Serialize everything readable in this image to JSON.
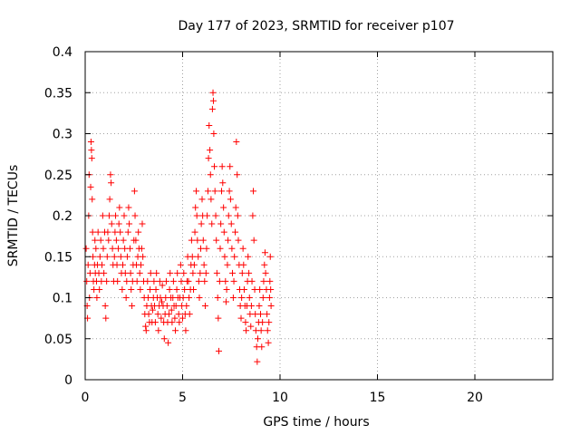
{
  "chart_data": {
    "type": "scatter",
    "title": "Day 177 of 2023, SRMTID for receiver p107",
    "xlabel": "GPS time / hours",
    "ylabel": "SRMTID / TECUs",
    "xlim": [
      0,
      24
    ],
    "ylim": [
      0,
      0.4
    ],
    "x_ticks": [
      0,
      5,
      10,
      15,
      20
    ],
    "y_ticks": [
      0,
      0.05,
      0.1,
      0.15,
      0.2,
      0.25,
      0.3,
      0.35,
      0.4
    ],
    "x_tick_labels": [
      "0",
      "5",
      "10",
      "15",
      "20"
    ],
    "y_tick_labels": [
      "0",
      "0.05",
      "0.1",
      "0.15",
      "0.2",
      "0.25",
      "0.3",
      "0.35",
      "0.4"
    ],
    "grid": true,
    "marker": "+",
    "color": "#ff0000",
    "points": [
      [
        0.05,
        0.16
      ],
      [
        0.08,
        0.12
      ],
      [
        0.1,
        0.09
      ],
      [
        0.12,
        0.075
      ],
      [
        0.15,
        0.14
      ],
      [
        0.18,
        0.2
      ],
      [
        0.2,
        0.25
      ],
      [
        0.22,
        0.1
      ],
      [
        0.25,
        0.13
      ],
      [
        0.28,
        0.235
      ],
      [
        0.3,
        0.29
      ],
      [
        0.32,
        0.28
      ],
      [
        0.34,
        0.27
      ],
      [
        0.36,
        0.22
      ],
      [
        0.38,
        0.18
      ],
      [
        0.4,
        0.15
      ],
      [
        0.42,
        0.12
      ],
      [
        0.45,
        0.11
      ],
      [
        0.48,
        0.14
      ],
      [
        0.5,
        0.17
      ],
      [
        0.52,
        0.13
      ],
      [
        0.55,
        0.16
      ],
      [
        0.58,
        0.12
      ],
      [
        0.6,
        0.1
      ],
      [
        0.63,
        0.14
      ],
      [
        0.66,
        0.18
      ],
      [
        0.7,
        0.13
      ],
      [
        0.73,
        0.11
      ],
      [
        0.76,
        0.15
      ],
      [
        0.8,
        0.17
      ],
      [
        0.83,
        0.12
      ],
      [
        0.86,
        0.14
      ],
      [
        0.9,
        0.2
      ],
      [
        0.93,
        0.16
      ],
      [
        0.96,
        0.13
      ],
      [
        1.0,
        0.18
      ],
      [
        1.03,
        0.09
      ],
      [
        1.06,
        0.075
      ],
      [
        1.1,
        0.12
      ],
      [
        1.13,
        0.15
      ],
      [
        1.16,
        0.18
      ],
      [
        1.2,
        0.17
      ],
      [
        1.23,
        0.2
      ],
      [
        1.26,
        0.22
      ],
      [
        1.3,
        0.25
      ],
      [
        1.33,
        0.24
      ],
      [
        1.36,
        0.19
      ],
      [
        1.4,
        0.16
      ],
      [
        1.43,
        0.14
      ],
      [
        1.46,
        0.12
      ],
      [
        1.5,
        0.15
      ],
      [
        1.53,
        0.18
      ],
      [
        1.56,
        0.2
      ],
      [
        1.6,
        0.17
      ],
      [
        1.63,
        0.14
      ],
      [
        1.66,
        0.12
      ],
      [
        1.7,
        0.16
      ],
      [
        1.73,
        0.19
      ],
      [
        1.76,
        0.21
      ],
      [
        1.8,
        0.18
      ],
      [
        1.83,
        0.15
      ],
      [
        1.86,
        0.13
      ],
      [
        1.9,
        0.11
      ],
      [
        1.93,
        0.14
      ],
      [
        1.96,
        0.17
      ],
      [
        2.0,
        0.2
      ],
      [
        2.03,
        0.16
      ],
      [
        2.06,
        0.13
      ],
      [
        2.1,
        0.1
      ],
      [
        2.13,
        0.12
      ],
      [
        2.16,
        0.15
      ],
      [
        2.2,
        0.18
      ],
      [
        2.23,
        0.21
      ],
      [
        2.26,
        0.19
      ],
      [
        2.3,
        0.16
      ],
      [
        2.33,
        0.13
      ],
      [
        2.36,
        0.11
      ],
      [
        2.4,
        0.09
      ],
      [
        2.43,
        0.12
      ],
      [
        2.46,
        0.14
      ],
      [
        2.5,
        0.17
      ],
      [
        2.53,
        0.23
      ],
      [
        2.56,
        0.2
      ],
      [
        2.6,
        0.17
      ],
      [
        2.63,
        0.14
      ],
      [
        2.66,
        0.12
      ],
      [
        2.7,
        0.15
      ],
      [
        2.73,
        0.18
      ],
      [
        2.76,
        0.16
      ],
      [
        2.8,
        0.13
      ],
      [
        2.83,
        0.11
      ],
      [
        2.86,
        0.14
      ],
      [
        2.9,
        0.16
      ],
      [
        2.93,
        0.19
      ],
      [
        2.96,
        0.15
      ],
      [
        3.0,
        0.12
      ],
      [
        3.03,
        0.1
      ],
      [
        3.06,
        0.08
      ],
      [
        3.1,
        0.065
      ],
      [
        3.13,
        0.06
      ],
      [
        3.16,
        0.09
      ],
      [
        3.2,
        0.12
      ],
      [
        3.23,
        0.1
      ],
      [
        3.26,
        0.08
      ],
      [
        3.3,
        0.07
      ],
      [
        3.33,
        0.11
      ],
      [
        3.36,
        0.13
      ],
      [
        3.4,
        0.09
      ],
      [
        3.43,
        0.07
      ],
      [
        3.46,
        0.085
      ],
      [
        3.5,
        0.1
      ],
      [
        3.53,
        0.12
      ],
      [
        3.56,
        0.09
      ],
      [
        3.6,
        0.07
      ],
      [
        3.63,
        0.11
      ],
      [
        3.66,
        0.13
      ],
      [
        3.7,
        0.1
      ],
      [
        3.73,
        0.08
      ],
      [
        3.76,
        0.06
      ],
      [
        3.8,
        0.09
      ],
      [
        3.83,
        0.12
      ],
      [
        3.86,
        0.1
      ],
      [
        3.9,
        0.075
      ],
      [
        3.93,
        0.095
      ],
      [
        3.96,
        0.115
      ],
      [
        4.0,
        0.09
      ],
      [
        4.03,
        0.07
      ],
      [
        4.06,
        0.05
      ],
      [
        4.1,
        0.08
      ],
      [
        4.13,
        0.1
      ],
      [
        4.16,
        0.12
      ],
      [
        4.2,
        0.09
      ],
      [
        4.23,
        0.07
      ],
      [
        4.26,
        0.045
      ],
      [
        4.3,
        0.08
      ],
      [
        4.33,
        0.11
      ],
      [
        4.36,
        0.13
      ],
      [
        4.4,
        0.1
      ],
      [
        4.43,
        0.085
      ],
      [
        4.46,
        0.07
      ],
      [
        4.5,
        0.1
      ],
      [
        4.53,
        0.12
      ],
      [
        4.56,
        0.09
      ],
      [
        4.6,
        0.075
      ],
      [
        4.63,
        0.06
      ],
      [
        4.66,
        0.09
      ],
      [
        4.7,
        0.11
      ],
      [
        4.73,
        0.13
      ],
      [
        4.76,
        0.1
      ],
      [
        4.8,
        0.08
      ],
      [
        4.83,
        0.07
      ],
      [
        4.86,
        0.1
      ],
      [
        4.9,
        0.14
      ],
      [
        4.93,
        0.12
      ],
      [
        4.96,
        0.09
      ],
      [
        5.0,
        0.075
      ],
      [
        5.03,
        0.1
      ],
      [
        5.06,
        0.13
      ],
      [
        5.1,
        0.11
      ],
      [
        5.13,
        0.08
      ],
      [
        5.16,
        0.06
      ],
      [
        5.2,
        0.09
      ],
      [
        5.23,
        0.12
      ],
      [
        5.26,
        0.15
      ],
      [
        5.3,
        0.12
      ],
      [
        5.33,
        0.1
      ],
      [
        5.36,
        0.08
      ],
      [
        5.4,
        0.11
      ],
      [
        5.43,
        0.14
      ],
      [
        5.46,
        0.17
      ],
      [
        5.5,
        0.15
      ],
      [
        5.53,
        0.13
      ],
      [
        5.56,
        0.11
      ],
      [
        5.6,
        0.14
      ],
      [
        5.63,
        0.18
      ],
      [
        5.66,
        0.21
      ],
      [
        5.7,
        0.23
      ],
      [
        5.73,
        0.2
      ],
      [
        5.76,
        0.17
      ],
      [
        5.8,
        0.15
      ],
      [
        5.83,
        0.12
      ],
      [
        5.86,
        0.1
      ],
      [
        5.9,
        0.13
      ],
      [
        5.93,
        0.16
      ],
      [
        5.96,
        0.19
      ],
      [
        6.0,
        0.22
      ],
      [
        6.03,
        0.2
      ],
      [
        6.06,
        0.17
      ],
      [
        6.1,
        0.14
      ],
      [
        6.13,
        0.12
      ],
      [
        6.16,
        0.09
      ],
      [
        6.2,
        0.13
      ],
      [
        6.23,
        0.16
      ],
      [
        6.26,
        0.2
      ],
      [
        6.3,
        0.23
      ],
      [
        6.33,
        0.27
      ],
      [
        6.36,
        0.31
      ],
      [
        6.4,
        0.28
      ],
      [
        6.43,
        0.25
      ],
      [
        6.46,
        0.22
      ],
      [
        6.5,
        0.19
      ],
      [
        6.53,
        0.33
      ],
      [
        6.56,
        0.35
      ],
      [
        6.58,
        0.34
      ],
      [
        6.6,
        0.3
      ],
      [
        6.63,
        0.26
      ],
      [
        6.66,
        0.23
      ],
      [
        6.7,
        0.2
      ],
      [
        6.73,
        0.17
      ],
      [
        6.76,
        0.13
      ],
      [
        6.8,
        0.1
      ],
      [
        6.83,
        0.075
      ],
      [
        6.86,
        0.035
      ],
      [
        6.9,
        0.12
      ],
      [
        6.93,
        0.16
      ],
      [
        6.96,
        0.19
      ],
      [
        7.0,
        0.23
      ],
      [
        7.03,
        0.26
      ],
      [
        7.06,
        0.24
      ],
      [
        7.1,
        0.21
      ],
      [
        7.13,
        0.18
      ],
      [
        7.16,
        0.15
      ],
      [
        7.2,
        0.12
      ],
      [
        7.23,
        0.095
      ],
      [
        7.26,
        0.11
      ],
      [
        7.3,
        0.14
      ],
      [
        7.33,
        0.17
      ],
      [
        7.36,
        0.2
      ],
      [
        7.4,
        0.23
      ],
      [
        7.43,
        0.26
      ],
      [
        7.46,
        0.22
      ],
      [
        7.5,
        0.19
      ],
      [
        7.53,
        0.16
      ],
      [
        7.56,
        0.13
      ],
      [
        7.6,
        0.1
      ],
      [
        7.63,
        0.12
      ],
      [
        7.66,
        0.15
      ],
      [
        7.7,
        0.18
      ],
      [
        7.73,
        0.21
      ],
      [
        7.76,
        0.29
      ],
      [
        7.8,
        0.25
      ],
      [
        7.83,
        0.2
      ],
      [
        7.86,
        0.17
      ],
      [
        7.9,
        0.14
      ],
      [
        7.93,
        0.11
      ],
      [
        7.96,
        0.09
      ],
      [
        8.0,
        0.075
      ],
      [
        8.03,
        0.1
      ],
      [
        8.06,
        0.13
      ],
      [
        8.1,
        0.16
      ],
      [
        8.13,
        0.14
      ],
      [
        8.16,
        0.11
      ],
      [
        8.2,
        0.09
      ],
      [
        8.23,
        0.07
      ],
      [
        8.26,
        0.06
      ],
      [
        8.3,
        0.09
      ],
      [
        8.33,
        0.12
      ],
      [
        8.36,
        0.15
      ],
      [
        8.4,
        0.13
      ],
      [
        8.43,
        0.1
      ],
      [
        8.46,
        0.08
      ],
      [
        8.5,
        0.065
      ],
      [
        8.53,
        0.09
      ],
      [
        8.56,
        0.12
      ],
      [
        8.6,
        0.2
      ],
      [
        8.63,
        0.23
      ],
      [
        8.66,
        0.17
      ],
      [
        8.7,
        0.11
      ],
      [
        8.73,
        0.08
      ],
      [
        8.76,
        0.06
      ],
      [
        8.8,
        0.04
      ],
      [
        8.83,
        0.022
      ],
      [
        8.86,
        0.05
      ],
      [
        8.9,
        0.07
      ],
      [
        8.93,
        0.09
      ],
      [
        8.96,
        0.11
      ],
      [
        9.0,
        0.08
      ],
      [
        9.03,
        0.06
      ],
      [
        9.06,
        0.04
      ],
      [
        9.1,
        0.07
      ],
      [
        9.13,
        0.1
      ],
      [
        9.16,
        0.12
      ],
      [
        9.2,
        0.14
      ],
      [
        9.23,
        0.155
      ],
      [
        9.26,
        0.13
      ],
      [
        9.3,
        0.11
      ],
      [
        9.33,
        0.08
      ],
      [
        9.36,
        0.06
      ],
      [
        9.4,
        0.045
      ],
      [
        9.43,
        0.07
      ],
      [
        9.46,
        0.1
      ],
      [
        9.48,
        0.12
      ],
      [
        9.5,
        0.15
      ],
      [
        9.52,
        0.11
      ],
      [
        9.54,
        0.09
      ]
    ]
  }
}
